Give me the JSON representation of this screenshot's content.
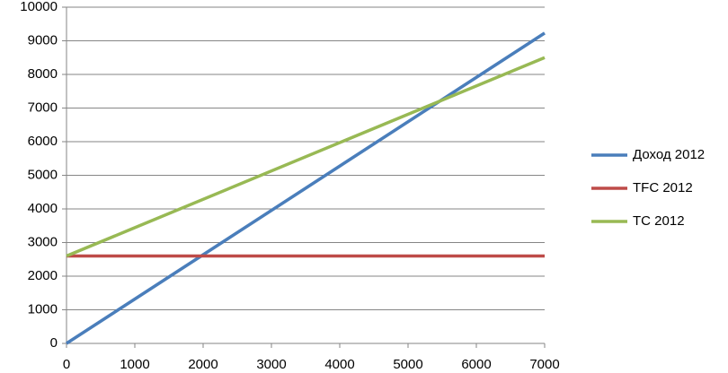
{
  "chart_data": {
    "type": "line",
    "x": [
      0,
      7000
    ],
    "series": [
      {
        "name": "Доход 2012",
        "color": "#4a7ebb",
        "values": [
          0,
          9230
        ]
      },
      {
        "name": "TFC 2012",
        "color": "#be4b48",
        "values": [
          2600,
          2600
        ]
      },
      {
        "name": "TC 2012",
        "color": "#98b954",
        "values": [
          2600,
          8500
        ]
      }
    ],
    "xlim": [
      0,
      7000
    ],
    "xticks": [
      0,
      1000,
      2000,
      3000,
      4000,
      5000,
      6000,
      7000
    ],
    "ylim": [
      0,
      10000
    ],
    "yticks": [
      0,
      1000,
      2000,
      3000,
      4000,
      5000,
      6000,
      7000,
      8000,
      9000,
      10000
    ],
    "grid": true,
    "legend": "right"
  }
}
